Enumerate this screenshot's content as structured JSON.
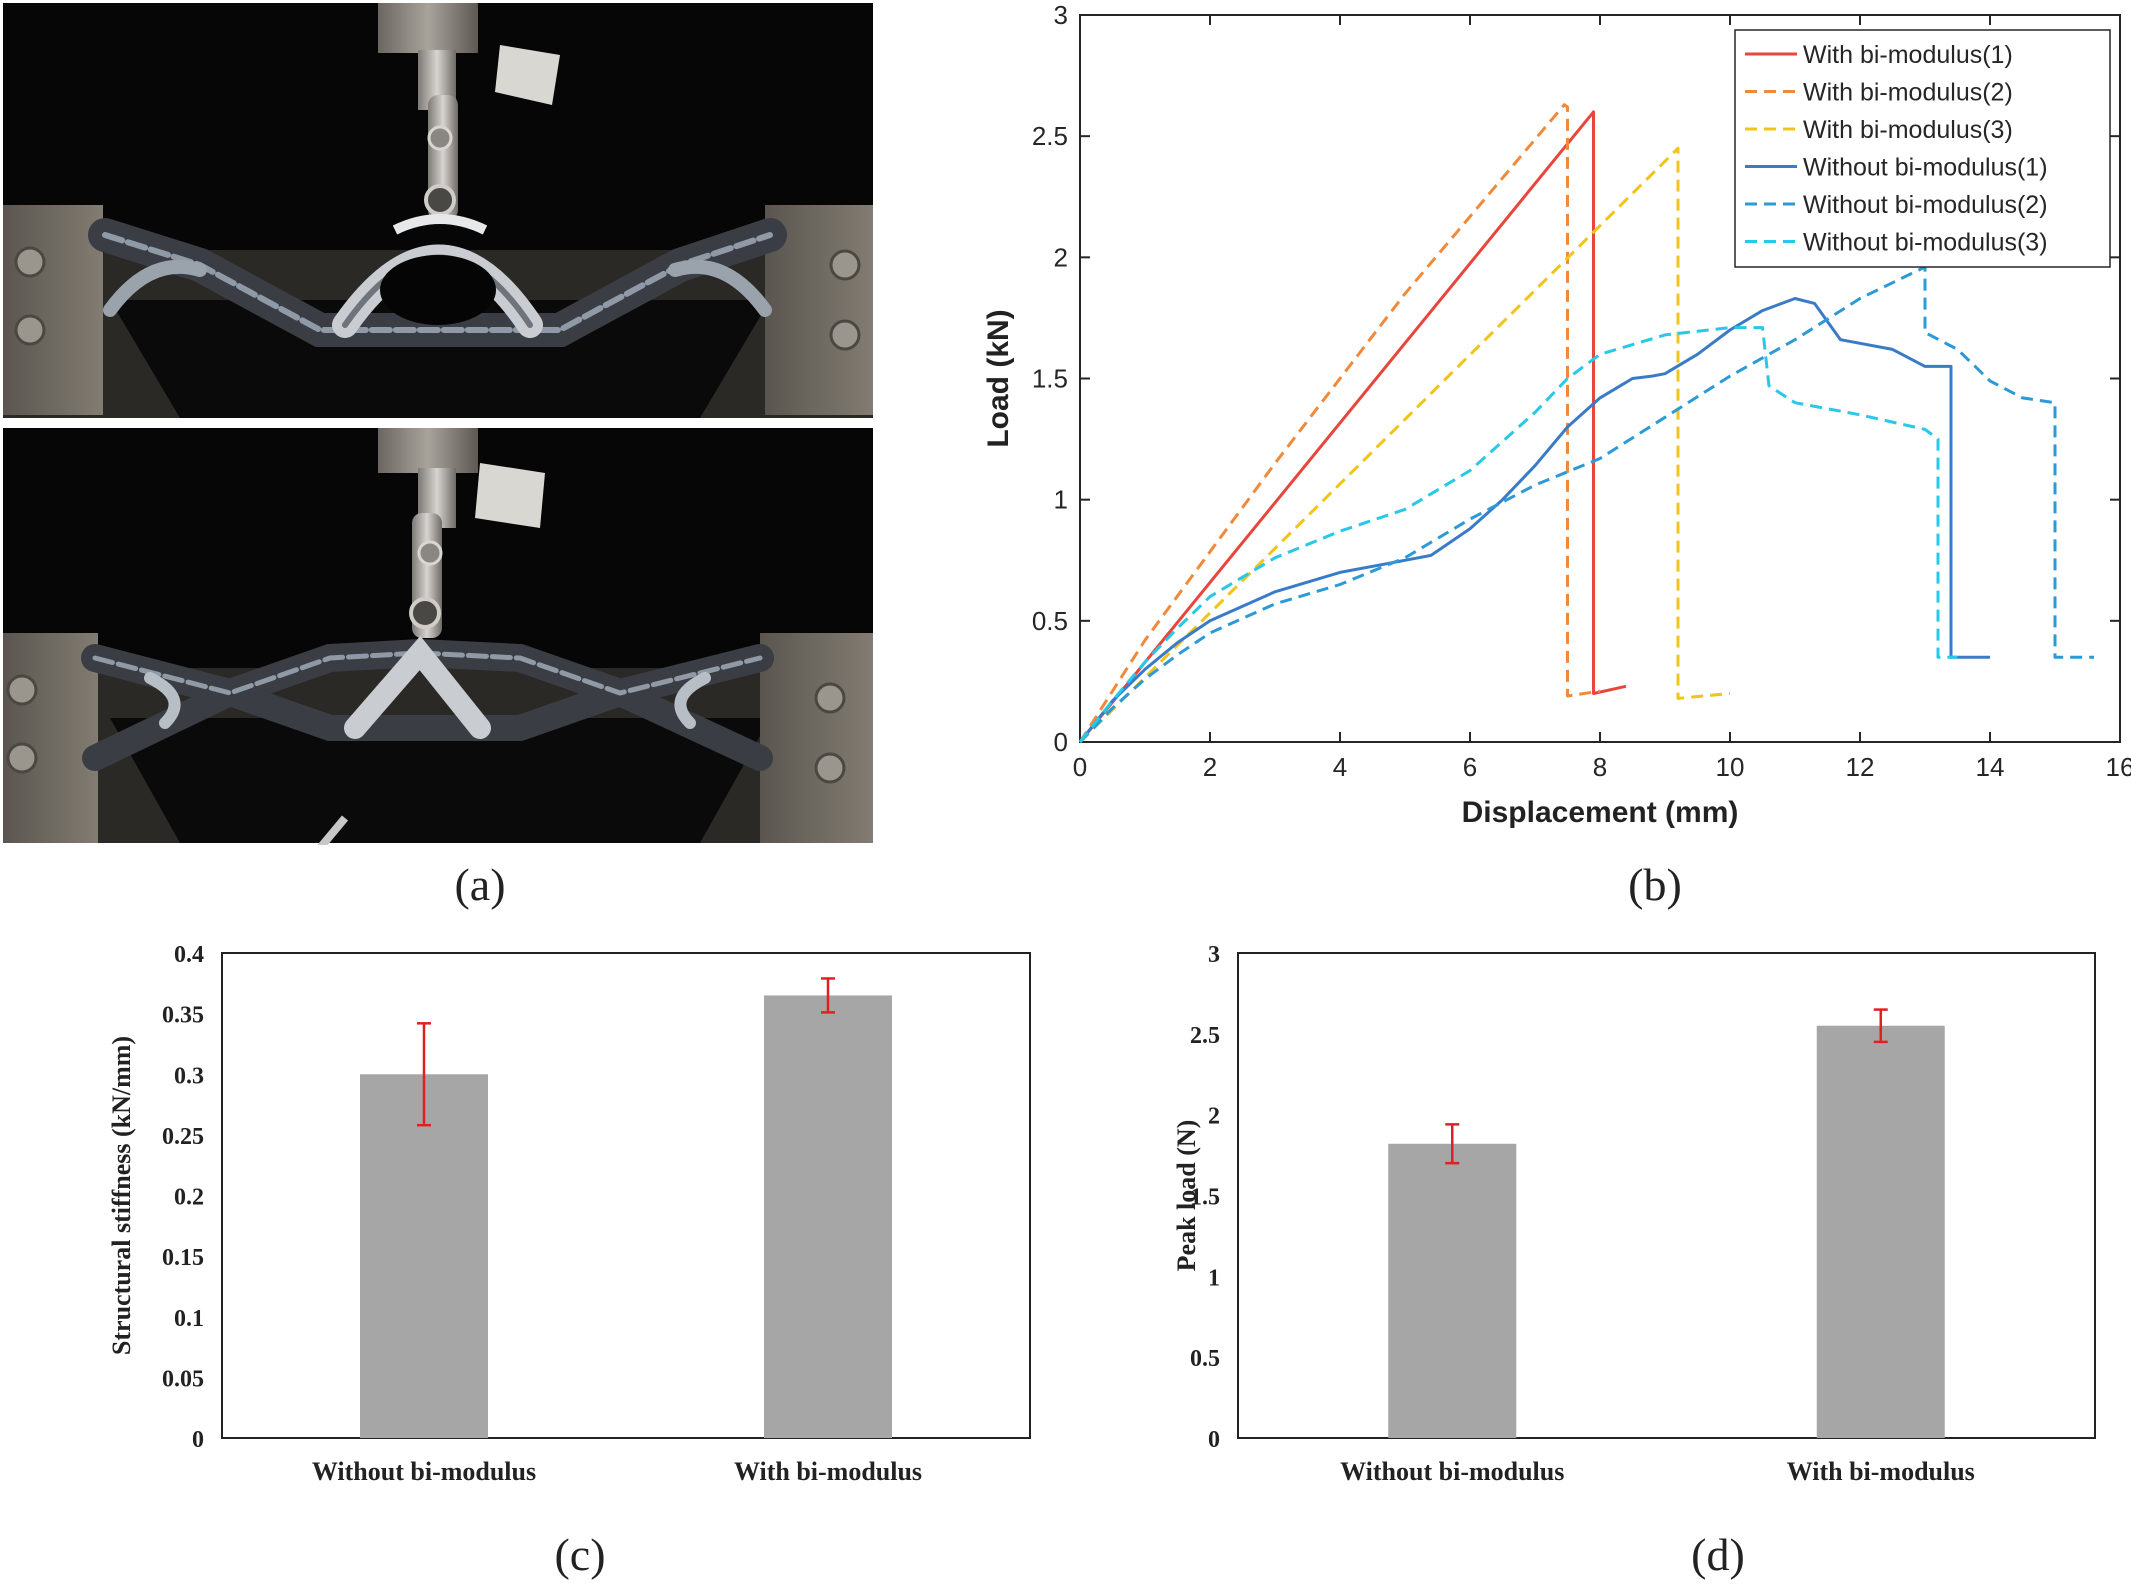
{
  "captions": {
    "a": "(a)",
    "b": "(b)",
    "c": "(c)",
    "d": "(d)"
  },
  "photos": {
    "top": "bending test photo before failure",
    "bottom": "bending test photo after deformation"
  },
  "chart_data": [
    {
      "id": "b",
      "type": "line",
      "xlabel": "Displacement (mm)",
      "ylabel": "Load (kN)",
      "xlim": [
        0,
        16
      ],
      "ylim": [
        0,
        3
      ],
      "xticks": [
        0,
        2,
        4,
        6,
        8,
        10,
        12,
        14,
        16
      ],
      "yticks": [
        0,
        0.5,
        1,
        1.5,
        2,
        2.5,
        3
      ],
      "grid": false,
      "legend": "top-right",
      "series": [
        {
          "name": "With bi-modulus(1)",
          "color": "#e8453c",
          "dash": "solid",
          "x": [
            0,
            7.9,
            7.9,
            8.4
          ],
          "y": [
            0,
            2.6,
            0.2,
            0.23
          ]
        },
        {
          "name": "With bi-modulus(2)",
          "color": "#f08a3a",
          "dash": "dash",
          "x": [
            0,
            1.0,
            3.0,
            5.0,
            7.45,
            7.5,
            7.5,
            8.0
          ],
          "y": [
            0,
            0.42,
            1.15,
            1.85,
            2.63,
            2.62,
            0.19,
            0.21
          ]
        },
        {
          "name": "With bi-modulus(3)",
          "color": "#f0c419",
          "dash": "dash",
          "x": [
            0,
            9.2,
            9.2,
            10.0
          ],
          "y": [
            0,
            2.45,
            0.18,
            0.2
          ]
        },
        {
          "name": "Without bi-modulus(1)",
          "color": "#3a7bc8",
          "dash": "solid",
          "x": [
            0,
            0.5,
            1.0,
            1.5,
            2.0,
            3.0,
            4.0,
            5.0,
            5.4,
            6.0,
            6.5,
            7.0,
            7.5,
            8.0,
            8.5,
            8.8,
            9.0,
            9.5,
            10.0,
            10.5,
            11.0,
            11.3,
            11.7,
            12.5,
            13.0,
            13.4,
            13.4,
            14.0
          ],
          "y": [
            0,
            0.17,
            0.3,
            0.41,
            0.5,
            0.62,
            0.7,
            0.75,
            0.77,
            0.88,
            1.0,
            1.14,
            1.3,
            1.42,
            1.5,
            1.51,
            1.52,
            1.6,
            1.7,
            1.78,
            1.83,
            1.81,
            1.66,
            1.62,
            1.55,
            1.55,
            0.35,
            0.35
          ]
        },
        {
          "name": "Without bi-modulus(2)",
          "color": "#2b9ad6",
          "dash": "dash",
          "x": [
            0,
            0.5,
            1.0,
            1.5,
            2.0,
            3.0,
            4.0,
            5.0,
            6.0,
            7.0,
            8.0,
            9.0,
            10.0,
            11.0,
            12.0,
            13.0,
            13.0,
            13.5,
            14.0,
            14.5,
            15.0,
            15.0,
            15.6
          ],
          "y": [
            0,
            0.14,
            0.26,
            0.36,
            0.45,
            0.57,
            0.65,
            0.76,
            0.92,
            1.06,
            1.17,
            1.34,
            1.51,
            1.66,
            1.83,
            1.96,
            1.69,
            1.62,
            1.49,
            1.42,
            1.4,
            0.35,
            0.35
          ]
        },
        {
          "name": "Without bi-modulus(3)",
          "color": "#28c8e8",
          "dash": "dash",
          "x": [
            0,
            0.5,
            1.0,
            1.5,
            2.0,
            3.0,
            4.0,
            5.0,
            6.0,
            7.0,
            7.5,
            8.0,
            9.0,
            10.0,
            10.5,
            10.6,
            11.0,
            12.0,
            13.0,
            13.2,
            13.2,
            13.5
          ],
          "y": [
            0,
            0.17,
            0.33,
            0.47,
            0.6,
            0.76,
            0.87,
            0.96,
            1.12,
            1.36,
            1.5,
            1.6,
            1.68,
            1.71,
            1.71,
            1.47,
            1.4,
            1.35,
            1.29,
            1.25,
            0.35,
            0.35
          ]
        }
      ]
    },
    {
      "id": "c",
      "type": "bar",
      "ylabel": "Structural stiffness (kN/mm)",
      "xlabel": "",
      "categories": [
        "Without bi-modulus",
        "With bi-modulus"
      ],
      "values": [
        0.3,
        0.365
      ],
      "errors": [
        0.042,
        0.014
      ],
      "ylim": [
        0,
        0.4
      ],
      "yticks": [
        "0",
        "0.05",
        "0.1",
        "0.15",
        "0.2",
        "0.25",
        "0.3",
        "0.35",
        "0.4"
      ],
      "bar_color": "#a6a6a6",
      "error_color": "#e02020"
    },
    {
      "id": "d",
      "type": "bar",
      "ylabel": "Peak load (N)",
      "xlabel": "",
      "categories": [
        "Without bi-modulus",
        "With bi-modulus"
      ],
      "values": [
        1.82,
        2.55
      ],
      "errors": [
        0.12,
        0.1
      ],
      "ylim": [
        0,
        3
      ],
      "yticks": [
        "0",
        "0.5",
        "1",
        "1.5",
        "2",
        "2.5",
        "3"
      ],
      "bar_color": "#a6a6a6",
      "error_color": "#e02020"
    }
  ]
}
